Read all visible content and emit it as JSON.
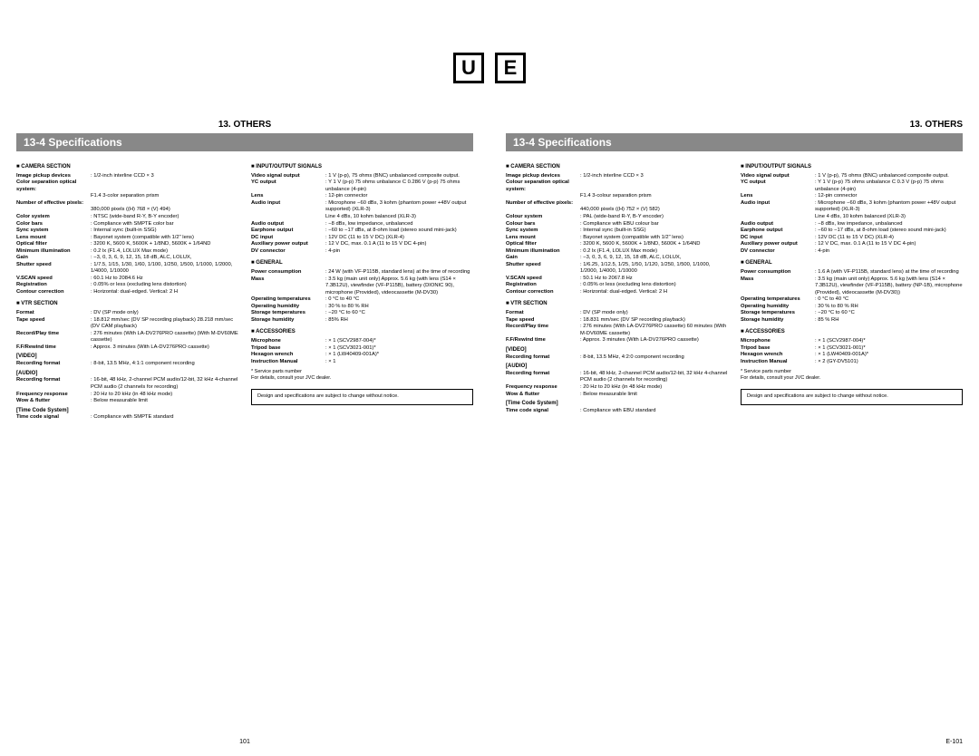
{
  "badge_left": "U",
  "badge_right": "E",
  "header": "13. OTHERS",
  "title": "13-4 Specifications",
  "notice": "Design and specifications are subject to change without notice.",
  "service_note1": "* Service parts number",
  "service_note2": "For details, consult your JVC dealer.",
  "page_u": "101",
  "page_e": "E-101",
  "u": {
    "camera": {
      "h": "CAMERA SECTION",
      "image_pickup_l": "Image pickup devices",
      "image_pickup_v": "1/2-inch interline CCD × 3",
      "color_sep_l": "Color separation optical system:",
      "color_sep_v": "F1.4 3-color separation prism",
      "pixels_l": "Number of effective pixels:",
      "pixels_v": "380,000 pixels ((H) 768 × (V) 494)",
      "colsys_l": "Color system",
      "colsys_v": "NTSC (wide-band R-Y, B-Y encoder)",
      "colbars_l": "Color bars",
      "colbars_v": "Compliance with SMPTE color bar",
      "sync_l": "Sync system",
      "sync_v": "Internal sync (built-in SSG)",
      "lens_l": "Lens mount",
      "lens_v": "Bayonet system (compatible with 1/2\" lens)",
      "optfilter_l": "Optical filter",
      "optfilter_v": "3200 K, 5600 K, 5600K + 1/8ND, 5600K + 1/64ND",
      "minillum_l": "Minimum illumination",
      "minillum_v": "0.2 lx (F1.4, LOLUX Max mode)",
      "gain_l": "Gain",
      "gain_v": "−3, 0, 3, 6, 9, 12, 15, 18 dB, ALC, LOLUX,",
      "shutter_l": "Shutter speed",
      "shutter_v": "1/7.5, 1/15, 1/30, 1/60, 1/100, 1/250, 1/500, 1/1000, 1/2000, 1/4000, 1/10000",
      "vscan_l": "V.SCAN speed",
      "vscan_v": "60.1 Hz to 2084.6 Hz",
      "reg_l": "Registration",
      "reg_v": "0.05% or less (excluding lens distortion)",
      "contour_l": "Contour correction",
      "contour_v": "Horizontal: dual-edged. Vertical: 2 H"
    },
    "vtr": {
      "h": "VTR SECTION",
      "format_l": "Format",
      "format_v": "DV (SP mode only)",
      "tape_l": "Tape speed",
      "tape_v": "18.812 mm/sec (DV SP recording playback) 28.218 mm/sec (DV CAM playback)",
      "recplay_l": "Record/Play time",
      "recplay_v": "276 minutes (With LA-DV276PRO cassette) (With M-DV60ME cassette)",
      "ffrew_l": "F.F/Rewind time",
      "ffrew_v": "Approx. 3 minutes (With LA-DV276PRO cassette)",
      "video_h": "[VIDEO]",
      "recfmt_l": "Recording format",
      "recfmt_v": "8-bit, 13.5 MHz, 4:1:1 component recording",
      "audio_h": "[AUDIO]",
      "arecfmt_l": "Recording format",
      "arecfmt_v": "16-bit, 48 kHz, 2-channel PCM audio/12-bit, 32 kHz 4-channel PCM audio (2 channels for recording)",
      "freq_l": "Frequency response",
      "freq_v": "20 Hz to 20 kHz (in 48 kHz mode)",
      "wow_l": "Wow & flutter",
      "wow_v": "Below measurable limit",
      "tc_h": "[Time Code System]",
      "tcsig_l": "Time code signal",
      "tcsig_v": "Compliance with SMPTE standard"
    },
    "io": {
      "h": "INPUT/OUTPUT SIGNALS",
      "vsig_l": "Video signal output",
      "vsig_v": "1 V (p-p), 75 ohms (BNC) unbalanced composite output.",
      "yc_l": "YC output",
      "yc_v": "Y 1 V (p-p) 75 ohms unbalance C 0.286 V (p-p) 75 ohms unbalance (4-pin)",
      "lens_l": "Lens",
      "lens_v": "12-pin connector",
      "ain_l": "Audio input",
      "ain_v": "Microphone −60 dBs, 3 kohm (phantom power +48V output supported) (XLR-3)",
      "ain_ln": "Line   4 dBs, 10 kohm balanced (XLR-3)",
      "aout_l": "Audio output",
      "aout_v": "−8 dBs, low impedance, unbalanced",
      "ear_l": "Earphone output",
      "ear_v": "−60 to −17 dBs, at 8-ohm load (stereo sound mini-jack)",
      "dc_l": "DC input",
      "dc_v": "12V DC (11 to 15 V DC) (XLR-4)",
      "aux_l": "Auxiliary power output",
      "aux_v": "12 V DC, max. 0.1 A (11 to 15 V DC 4-pin)",
      "dvc_l": "DV connector",
      "dvc_v": "4-pin"
    },
    "gen": {
      "h": "GENERAL",
      "pwr_l": "Power consumption",
      "pwr_v": "24 W (with VF-P115B, standard lens) at the time of recording",
      "mass_l": "Mass",
      "mass_v": "3.5 kg (main unit only) Approx. 5.6 kg (with lens (S14 × 7.3B12U), viewfinder (VF-P115B), battery (DIONIC 90), microphone (Provided), videocassette (M-DV30)",
      "optemp_l": "Operating temperatures",
      "optemp_v": "0 °C to 40 °C",
      "ophum_l": "Operating humidity",
      "ophum_v": "30 % to 80 % RH",
      "sttemp_l": "Storage temperatures",
      "sttemp_v": "−20 °C to 60 °C",
      "sthum_l": "Storage humidity",
      "sthum_v": "85% RH"
    },
    "acc": {
      "h": "ACCESSORIES",
      "mic_l": "Microphone",
      "mic_v": "× 1 (SCV2987-004)*",
      "tripod_l": "Tripod base",
      "tripod_v": "× 1 (SCV3021-001)*",
      "hex_l": "Hexagon wrench",
      "hex_v": "× 1 (LW40409-001A)*",
      "manual_l": "Instruction Manual",
      "manual_v": "× 1"
    }
  },
  "e": {
    "camera": {
      "h": "CAMERA SECTION",
      "image_pickup_l": "Image pickup devices",
      "image_pickup_v": "1/2-inch interline CCD × 3",
      "color_sep_l": "Colour separation optical system:",
      "color_sep_v": "F1.4 3-colour separation prism",
      "pixels_l": "Number of effective pixels:",
      "pixels_v": "440,000 pixels ((H) 752 × (V) 582)",
      "colsys_l": "Colour system",
      "colsys_v": "PAL (wide-band R-Y, B-Y encoder)",
      "colbars_l": "Colour bars",
      "colbars_v": "Compliance with EBU colour bar",
      "sync_l": "Sync system",
      "sync_v": "Internal sync (built-in SSG)",
      "lens_l": "Lens mount",
      "lens_v": "Bayonet system (compatible with 1/2\" lens)",
      "optfilter_l": "Optical filter",
      "optfilter_v": "3200 K, 5600 K, 5600K + 1/8ND, 5600K + 1/64ND",
      "minillum_l": "Minimum illumination",
      "minillum_v": "0.2 lx (F1.4, LOLUX Max mode)",
      "gain_l": "Gain",
      "gain_v": "−3, 0, 3, 6, 9, 12, 15, 18 dB, ALC, LOLUX,",
      "shutter_l": "Shutter speed",
      "shutter_v": "1/6.25, 1/12.5, 1/25, 1/50, 1/120, 1/250, 1/500, 1/1000, 1/2000, 1/4000, 1/10000",
      "vscan_l": "V.SCAN speed",
      "vscan_v": "50.1 Hz to 2067.8 Hz",
      "reg_l": "Registration",
      "reg_v": "0.05% or less (excluding lens distortion)",
      "contour_l": "Contour correction",
      "contour_v": "Horizontal: dual-edged. Vertical: 2 H"
    },
    "vtr": {
      "h": "VTR SECTION",
      "format_l": "Format",
      "format_v": "DV (SP mode only)",
      "tape_l": "Tape speed",
      "tape_v": "18.831 mm/sec (DV SP recording playback)",
      "recplay_l": "Record/Play time",
      "recplay_v": "276 minutes (With LA-DV276PRO cassette) 60 minutes (With M-DV60ME cassette)",
      "ffrew_l": "F.F/Rewind time",
      "ffrew_v": "Approx. 3 minutes (With LA-DV276PRO cassette)",
      "video_h": "[VIDEO]",
      "recfmt_l": "Recording format",
      "recfmt_v": "8-bit, 13.5 MHz, 4:2:0 component recording",
      "audio_h": "[AUDIO]",
      "arecfmt_l": "Recording format",
      "arecfmt_v": "16-bit, 48 kHz, 2-channel PCM audio/12-bit, 32 kHz 4-channel PCM audio (2 channels for recording)",
      "freq_l": "Frequency response",
      "freq_v": "20 Hz to 20 kHz (in 48 kHz mode)",
      "wow_l": "Wow & flutter",
      "wow_v": "Below measurable limit",
      "tc_h": "[Time Code System]",
      "tcsig_l": "Time code signal",
      "tcsig_v": "Compliance with EBU standard"
    },
    "io": {
      "h": "INPUT/OUTPUT SIGNALS",
      "vsig_l": "Video signal output",
      "vsig_v": "1 V (p-p), 75 ohms (BNC) unbalanced composite output.",
      "yc_l": "YC output",
      "yc_v": "Y 1 V (p-p) 75 ohms unbalance C 0.3 V (p-p) 75 ohms unbalance (4-pin)",
      "lens_l": "Lens",
      "lens_v": "12-pin connector",
      "ain_l": "Audio input",
      "ain_v": "Microphone −60 dBs, 3 kohm (phantom power +48V output supported) (XLR-3)",
      "ain_ln": "Line   4 dBs, 10 kohm balanced (XLR-3)",
      "aout_l": "Audio output",
      "aout_v": "−8 dBs, low impedance, unbalanced",
      "ear_l": "Earphone output",
      "ear_v": "−60 to −17 dBs, at 8-ohm load (stereo sound mini-jack)",
      "dc_l": "DC input",
      "dc_v": "12V DC (11 to 15 V DC) (XLR-4)",
      "aux_l": "Auxiliary power output",
      "aux_v": "12 V DC, max. 0.1 A (11 to 15 V DC 4-pin)",
      "dvc_l": "DV connector",
      "dvc_v": "4-pin"
    },
    "gen": {
      "h": "GENERAL",
      "pwr_l": "Power consumption",
      "pwr_v": "1.6 A (with VF-P115B, standard lens) at the time of recording",
      "mass_l": "Mass",
      "mass_v": "3.5 kg (main unit only) Approx. 5.6 kg (with lens (S14 × 7.3B12U), viewfinder (VF-P115B), battery (NP-1B), microphone (Provided), videocassette (M-DV30))",
      "optemp_l": "Operating temperatures",
      "optemp_v": "0 °C to 40 °C",
      "ophum_l": "Operating humidity",
      "ophum_v": "30 % to 80 % RH",
      "sttemp_l": "Storage temperatures",
      "sttemp_v": "−20 °C to 60 °C",
      "sthum_l": "Storage humidity",
      "sthum_v": "85 % RH"
    },
    "acc": {
      "h": "ACCESSORIES",
      "mic_l": "Microphone",
      "mic_v": "× 1 (SCV2987-004)*",
      "tripod_l": "Tripod base",
      "tripod_v": "× 1 (SCV3021-001)*",
      "hex_l": "Hexagon wrench",
      "hex_v": "× 1 (LW40409-001A)*",
      "manual_l": "Instruction Manual",
      "manual_v": "× 2 (GY-DV5101)"
    }
  }
}
